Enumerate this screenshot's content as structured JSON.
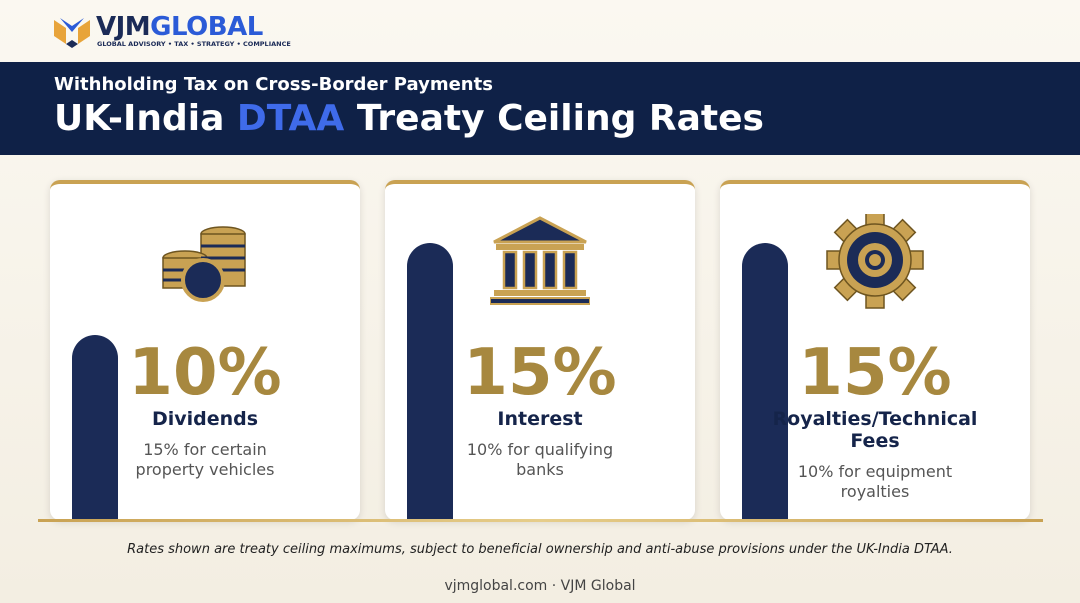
{
  "header": {
    "brand": [
      "VJM",
      "GLOBAL"
    ],
    "tagline": "GLOBAL ADVISORY • TAX • STRATEGY • COMPLIANCE",
    "kicker": "Withholding Tax on Cross-Border Payments",
    "title_parts": [
      "UK-India ",
      "DTAA",
      " Treaty Ceiling Rates"
    ]
  },
  "chart_data": {
    "type": "bar",
    "categories": [
      "Dividends",
      "Interest",
      "Royalties/Technical Fees"
    ],
    "values": [
      10,
      15,
      15
    ],
    "value_labels": [
      "10%",
      "15%",
      "15%"
    ],
    "notes": [
      "15% for certain property vehicles",
      "10% for qualifying banks",
      "10% for equipment royalties"
    ],
    "color": "#1b2b57"
  },
  "footnote": "Rates shown are treaty ceiling maximums, subject to beneficial ownership and anti-abuse provisions under the UK-India DTAA.",
  "footer": "vjmglobal.com · VJM Global"
}
